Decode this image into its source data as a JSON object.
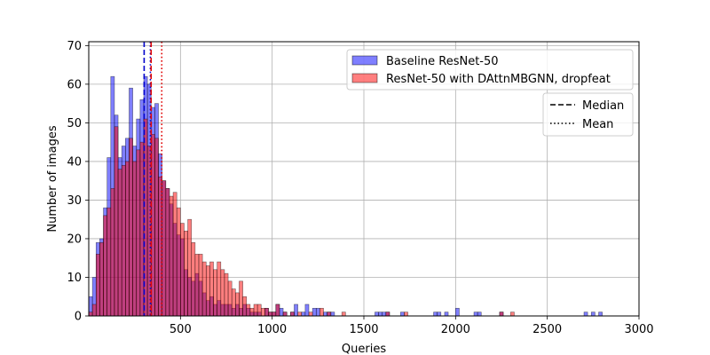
{
  "chart_data": {
    "type": "bar",
    "subtype": "overlapping-histogram",
    "xlabel": "Queries",
    "ylabel": "Number of images",
    "xlim": [
      0,
      3000
    ],
    "ylim": [
      0,
      71
    ],
    "xticks": [
      500,
      1000,
      1500,
      2000,
      2500,
      3000
    ],
    "yticks": [
      0,
      10,
      20,
      30,
      40,
      50,
      60,
      70
    ],
    "grid": true,
    "bin_width": 20,
    "series": [
      {
        "name": "Baseline ResNet-50",
        "color": "#0000ff",
        "alpha": 0.5,
        "bins": [
          [
            0,
            5
          ],
          [
            20,
            10
          ],
          [
            40,
            19
          ],
          [
            60,
            20
          ],
          [
            80,
            28
          ],
          [
            100,
            41
          ],
          [
            120,
            62
          ],
          [
            140,
            52
          ],
          [
            160,
            41
          ],
          [
            180,
            44
          ],
          [
            200,
            46
          ],
          [
            220,
            59
          ],
          [
            240,
            44
          ],
          [
            260,
            51
          ],
          [
            280,
            56
          ],
          [
            300,
            62
          ],
          [
            320,
            60
          ],
          [
            340,
            54
          ],
          [
            360,
            55
          ],
          [
            380,
            42
          ],
          [
            400,
            35
          ],
          [
            420,
            33
          ],
          [
            440,
            29
          ],
          [
            460,
            24
          ],
          [
            480,
            21
          ],
          [
            500,
            20
          ],
          [
            520,
            12
          ],
          [
            540,
            10
          ],
          [
            560,
            9
          ],
          [
            580,
            11
          ],
          [
            600,
            9
          ],
          [
            620,
            6
          ],
          [
            640,
            4
          ],
          [
            660,
            5
          ],
          [
            680,
            3
          ],
          [
            700,
            4
          ],
          [
            720,
            3
          ],
          [
            740,
            3
          ],
          [
            760,
            3
          ],
          [
            780,
            2
          ],
          [
            800,
            3
          ],
          [
            820,
            2
          ],
          [
            840,
            3
          ],
          [
            860,
            2
          ],
          [
            880,
            1
          ],
          [
            900,
            1
          ],
          [
            920,
            1
          ],
          [
            960,
            2
          ],
          [
            980,
            1
          ],
          [
            1000,
            1
          ],
          [
            1020,
            3
          ],
          [
            1040,
            2
          ],
          [
            1060,
            1
          ],
          [
            1100,
            1
          ],
          [
            1120,
            3
          ],
          [
            1160,
            1
          ],
          [
            1180,
            3
          ],
          [
            1220,
            2
          ],
          [
            1240,
            2
          ],
          [
            1280,
            1
          ],
          [
            1300,
            1
          ],
          [
            1320,
            1
          ],
          [
            1560,
            1
          ],
          [
            1580,
            1
          ],
          [
            1600,
            1
          ],
          [
            1620,
            1
          ],
          [
            1700,
            1
          ],
          [
            1880,
            1
          ],
          [
            1900,
            1
          ],
          [
            1940,
            1
          ],
          [
            2000,
            2
          ],
          [
            2100,
            1
          ],
          [
            2120,
            1
          ],
          [
            2240,
            1
          ],
          [
            2700,
            1
          ],
          [
            2740,
            1
          ],
          [
            2780,
            1
          ]
        ]
      },
      {
        "name": "ResNet-50 with DAttnMBGNN, dropfeat",
        "color": "#ff0000",
        "alpha": 0.5,
        "bins": [
          [
            0,
            1
          ],
          [
            20,
            3
          ],
          [
            40,
            16
          ],
          [
            60,
            19
          ],
          [
            80,
            26
          ],
          [
            100,
            28
          ],
          [
            120,
            33
          ],
          [
            140,
            49
          ],
          [
            160,
            38
          ],
          [
            180,
            39
          ],
          [
            200,
            40
          ],
          [
            220,
            46
          ],
          [
            240,
            40
          ],
          [
            260,
            43
          ],
          [
            280,
            45
          ],
          [
            300,
            51
          ],
          [
            320,
            44
          ],
          [
            340,
            47
          ],
          [
            360,
            46
          ],
          [
            380,
            36
          ],
          [
            400,
            35
          ],
          [
            420,
            33
          ],
          [
            440,
            31
          ],
          [
            460,
            32
          ],
          [
            480,
            28
          ],
          [
            500,
            24
          ],
          [
            520,
            22
          ],
          [
            540,
            25
          ],
          [
            560,
            19
          ],
          [
            580,
            16
          ],
          [
            600,
            16
          ],
          [
            620,
            14
          ],
          [
            640,
            13
          ],
          [
            660,
            14
          ],
          [
            680,
            12
          ],
          [
            700,
            14
          ],
          [
            720,
            12
          ],
          [
            740,
            11
          ],
          [
            760,
            9
          ],
          [
            780,
            7
          ],
          [
            800,
            6
          ],
          [
            820,
            9
          ],
          [
            840,
            5
          ],
          [
            860,
            3
          ],
          [
            880,
            2
          ],
          [
            900,
            3
          ],
          [
            920,
            3
          ],
          [
            940,
            2
          ],
          [
            960,
            2
          ],
          [
            980,
            1
          ],
          [
            1000,
            1
          ],
          [
            1020,
            3
          ],
          [
            1060,
            1
          ],
          [
            1100,
            1
          ],
          [
            1140,
            1
          ],
          [
            1200,
            1
          ],
          [
            1260,
            2
          ],
          [
            1300,
            1
          ],
          [
            1380,
            1
          ],
          [
            1620,
            1
          ],
          [
            1720,
            1
          ],
          [
            2240,
            1
          ],
          [
            2300,
            1
          ]
        ]
      }
    ],
    "reference_lines": [
      {
        "series": "Baseline ResNet-50",
        "stat": "Median",
        "x": 302,
        "color": "#0000cc",
        "style": "dashed"
      },
      {
        "series": "Baseline ResNet-50",
        "stat": "Mean",
        "x": 336,
        "color": "#0000cc",
        "style": "dotted"
      },
      {
        "series": "ResNet-50 with DAttnMBGNN, dropfeat",
        "stat": "Median",
        "x": 340,
        "color": "#e00000",
        "style": "dashed"
      },
      {
        "series": "ResNet-50 with DAttnMBGNN, dropfeat",
        "stat": "Mean",
        "x": 398,
        "color": "#e00000",
        "style": "dotted"
      }
    ],
    "legend_placement": "top-right",
    "style_legend": [
      {
        "label": "Median",
        "style": "dashed"
      },
      {
        "label": "Mean",
        "style": "dotted"
      }
    ]
  }
}
